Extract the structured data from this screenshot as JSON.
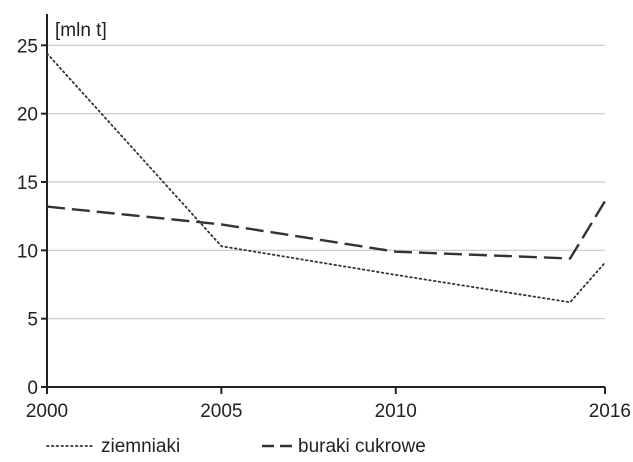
{
  "chart_data": {
    "type": "line",
    "unit_label": "[mln t]",
    "x": [
      2000,
      2005,
      2010,
      2015,
      2016
    ],
    "x_ticks": [
      "2000",
      "2005",
      "2010",
      "2016"
    ],
    "x_tick_values": [
      2000,
      2005,
      2010,
      2016
    ],
    "y_ticks": [
      "0",
      "5",
      "10",
      "15",
      "20",
      "25"
    ],
    "y_tick_values": [
      0,
      5,
      10,
      15,
      20,
      25
    ],
    "xlim": [
      2000,
      2016
    ],
    "ylim": [
      0,
      27
    ],
    "grid": "horizontal",
    "legend_position": "bottom",
    "series": [
      {
        "name": "ziemniaki",
        "style": "dotted",
        "color": "#333333",
        "values": [
          24.4,
          10.3,
          8.2,
          6.2,
          9.1
        ]
      },
      {
        "name": "buraki cukrowe",
        "style": "dashed",
        "color": "#333333",
        "values": [
          13.2,
          11.9,
          9.9,
          9.4,
          13.6
        ]
      }
    ]
  }
}
